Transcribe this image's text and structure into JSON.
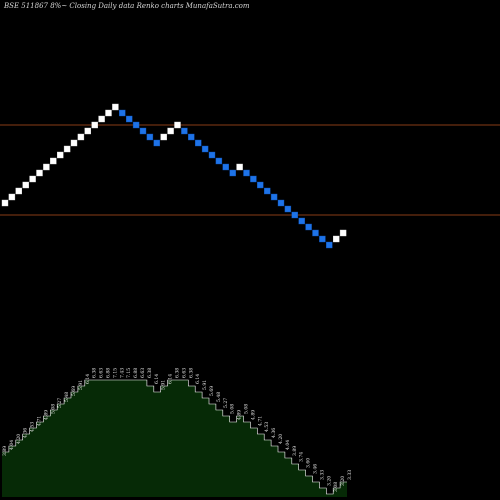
{
  "header": {
    "title": "BSE 511867 8%~  Closing Daily data  Renko  charts MunafaSutra.com"
  },
  "colors": {
    "background": "#000000",
    "up_brick": "#ffffff",
    "down_brick": "#1e73e8",
    "guide_line": "#b4501e",
    "volume_fill": "#062a06",
    "volume_outline": "#ffffff"
  },
  "chart_data": {
    "type": "renko",
    "title": "BSE 511867 8%~  Closing Daily data  Renko  charts MunafaSutra.com",
    "bricks": [
      {
        "dir": "up",
        "level": 1
      },
      {
        "dir": "up",
        "level": 2
      },
      {
        "dir": "up",
        "level": 3
      },
      {
        "dir": "up",
        "level": 4
      },
      {
        "dir": "up",
        "level": 5
      },
      {
        "dir": "up",
        "level": 6
      },
      {
        "dir": "up",
        "level": 7
      },
      {
        "dir": "up",
        "level": 8
      },
      {
        "dir": "up",
        "level": 9
      },
      {
        "dir": "up",
        "level": 10
      },
      {
        "dir": "up",
        "level": 11
      },
      {
        "dir": "up",
        "level": 12
      },
      {
        "dir": "up",
        "level": 13
      },
      {
        "dir": "up",
        "level": 14
      },
      {
        "dir": "up",
        "level": 15
      },
      {
        "dir": "up",
        "level": 16
      },
      {
        "dir": "up",
        "level": 17
      },
      {
        "dir": "down",
        "level": 16
      },
      {
        "dir": "down",
        "level": 15
      },
      {
        "dir": "down",
        "level": 14
      },
      {
        "dir": "down",
        "level": 13
      },
      {
        "dir": "down",
        "level": 12
      },
      {
        "dir": "down",
        "level": 11
      },
      {
        "dir": "up",
        "level": 12
      },
      {
        "dir": "up",
        "level": 13
      },
      {
        "dir": "up",
        "level": 14
      },
      {
        "dir": "down",
        "level": 13
      },
      {
        "dir": "down",
        "level": 12
      },
      {
        "dir": "down",
        "level": 11
      },
      {
        "dir": "down",
        "level": 10
      },
      {
        "dir": "down",
        "level": 9
      },
      {
        "dir": "down",
        "level": 8
      },
      {
        "dir": "down",
        "level": 7
      },
      {
        "dir": "down",
        "level": 6
      },
      {
        "dir": "up",
        "level": 7
      },
      {
        "dir": "down",
        "level": 6
      },
      {
        "dir": "down",
        "level": 5
      },
      {
        "dir": "down",
        "level": 4
      },
      {
        "dir": "down",
        "level": 3
      },
      {
        "dir": "down",
        "level": 2
      },
      {
        "dir": "down",
        "level": 1
      },
      {
        "dir": "down",
        "level": 0
      },
      {
        "dir": "down",
        "level": -1
      },
      {
        "dir": "down",
        "level": -2
      },
      {
        "dir": "down",
        "level": -3
      },
      {
        "dir": "down",
        "level": -4
      },
      {
        "dir": "down",
        "level": -5
      },
      {
        "dir": "down",
        "level": -6
      },
      {
        "dir": "up",
        "level": -5
      },
      {
        "dir": "up",
        "level": -4
      }
    ],
    "guide_lines": [
      14,
      -1
    ],
    "price_labels": [
      {
        "text": "3.89",
        "level": 0
      },
      {
        "text": "4.04",
        "level": 1
      },
      {
        "text": "4.20",
        "level": 2
      },
      {
        "text": "4.36",
        "level": 3
      },
      {
        "text": "4.53",
        "level": 4
      },
      {
        "text": "4.71",
        "level": 5
      },
      {
        "text": "4.89",
        "level": 6
      },
      {
        "text": "5.08",
        "level": 7
      },
      {
        "text": "5.27",
        "level": 8
      },
      {
        "text": "5.48",
        "level": 9
      },
      {
        "text": "5.69",
        "level": 10
      },
      {
        "text": "5.91",
        "level": 11
      },
      {
        "text": "6.14",
        "level": 12
      },
      {
        "text": "6.38",
        "level": 13
      },
      {
        "text": "6.63",
        "level": 14
      },
      {
        "text": "6.88",
        "level": 15
      },
      {
        "text": "7.15",
        "level": 16
      },
      {
        "text": "7.43",
        "level": 17
      },
      {
        "text": "7.15",
        "level": 16
      },
      {
        "text": "6.88",
        "level": 15
      },
      {
        "text": "6.63",
        "level": 14
      },
      {
        "text": "6.38",
        "level": 13
      },
      {
        "text": "6.14",
        "level": 12
      },
      {
        "text": "5.91",
        "level": 11
      },
      {
        "text": "6.14",
        "level": 12
      },
      {
        "text": "6.38",
        "level": 13
      },
      {
        "text": "6.63",
        "level": 14
      },
      {
        "text": "6.38",
        "level": 13
      },
      {
        "text": "6.14",
        "level": 12
      },
      {
        "text": "5.91",
        "level": 11
      },
      {
        "text": "5.69",
        "level": 10
      },
      {
        "text": "5.48",
        "level": 9
      },
      {
        "text": "5.27",
        "level": 8
      },
      {
        "text": "5.08",
        "level": 7
      },
      {
        "text": "4.89",
        "level": 6
      },
      {
        "text": "5.08",
        "level": 7
      },
      {
        "text": "4.89",
        "level": 6
      },
      {
        "text": "4.71",
        "level": 5
      },
      {
        "text": "4.53",
        "level": 4
      },
      {
        "text": "4.36",
        "level": 3
      },
      {
        "text": "4.20",
        "level": 2
      },
      {
        "text": "4.04",
        "level": 1
      },
      {
        "text": "3.89",
        "level": 0
      },
      {
        "text": "3.74",
        "level": -1
      },
      {
        "text": "3.60",
        "level": -2
      },
      {
        "text": "3.46",
        "level": -3
      },
      {
        "text": "3.33",
        "level": -4
      },
      {
        "text": "3.20",
        "level": -5
      },
      {
        "text": "3.08",
        "level": -6
      },
      {
        "text": "3.20",
        "level": -5
      },
      {
        "text": "3.33",
        "level": -4
      }
    ]
  }
}
